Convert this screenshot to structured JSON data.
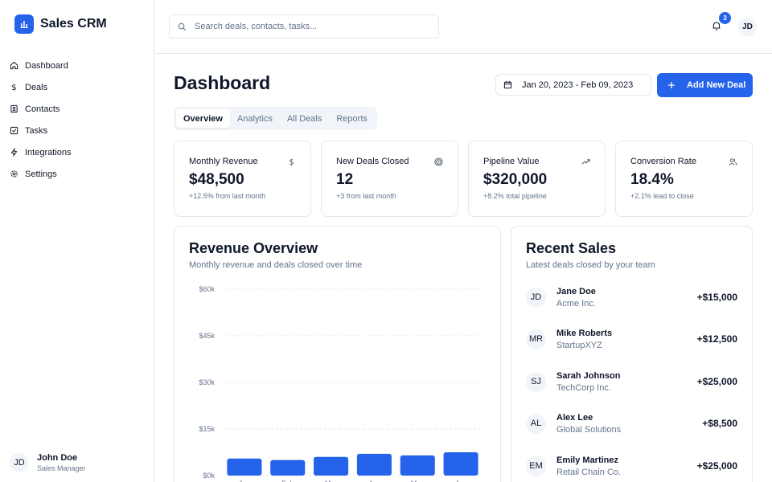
{
  "app": {
    "name": "Sales CRM",
    "accent": "#2563eb"
  },
  "sidebar": {
    "items": [
      {
        "label": "Dashboard",
        "icon": "home-icon",
        "active": true
      },
      {
        "label": "Deals",
        "icon": "dollar-icon"
      },
      {
        "label": "Contacts",
        "icon": "contacts-icon"
      },
      {
        "label": "Tasks",
        "icon": "checkbox-icon"
      },
      {
        "label": "Integrations",
        "icon": "bolt-icon"
      },
      {
        "label": "Settings",
        "icon": "gear-icon"
      }
    ],
    "user": {
      "initials": "JD",
      "name": "John Doe",
      "role": "Sales Manager"
    }
  },
  "header": {
    "search_placeholder": "Search deals, contacts, tasks...",
    "notifications": "3",
    "avatar_initials": "JD"
  },
  "main": {
    "title": "Dashboard",
    "date_range": "Jan 20, 2023 - Feb 09, 2023",
    "add_button": "Add New Deal",
    "tabs": [
      {
        "label": "Overview",
        "active": true
      },
      {
        "label": "Analytics"
      },
      {
        "label": "All Deals"
      },
      {
        "label": "Reports"
      }
    ],
    "stats": [
      {
        "title": "Monthly Revenue",
        "value": "$48,500",
        "sub": "+12.5% from last month",
        "icon": "dollar-icon"
      },
      {
        "title": "New Deals Closed",
        "value": "12",
        "sub": "+3 from last month",
        "icon": "target-icon"
      },
      {
        "title": "Pipeline Value",
        "value": "$320,000",
        "sub": "+8.2% total pipeline",
        "icon": "trending-up-icon"
      },
      {
        "title": "Conversion Rate",
        "value": "18.4%",
        "sub": "+2.1% lead to close",
        "icon": "users-icon"
      }
    ]
  },
  "revenue": {
    "title": "Revenue Overview",
    "subtitle": "Monthly revenue and deals closed over time"
  },
  "chart_data": {
    "type": "bar",
    "categories": [
      "Jan",
      "Feb",
      "Mar",
      "Apr",
      "May",
      "Jun"
    ],
    "values": [
      5500,
      5000,
      6000,
      7000,
      6500,
      7500
    ],
    "yticks": [
      "$0k",
      "$15k",
      "$30k",
      "$45k",
      "$60k"
    ],
    "ylim": [
      0,
      60000
    ],
    "grid": true,
    "bar_color": "#2563eb"
  },
  "recent_sales": {
    "title": "Recent Sales",
    "subtitle": "Latest deals closed by your team",
    "items": [
      {
        "initials": "JD",
        "name": "Jane Doe",
        "company": "Acme Inc.",
        "amount": "+$15,000"
      },
      {
        "initials": "MR",
        "name": "Mike Roberts",
        "company": "StartupXYZ",
        "amount": "+$12,500"
      },
      {
        "initials": "SJ",
        "name": "Sarah Johnson",
        "company": "TechCorp Inc.",
        "amount": "+$25,000"
      },
      {
        "initials": "AL",
        "name": "Alex Lee",
        "company": "Global Solutions",
        "amount": "+$8,500"
      },
      {
        "initials": "EM",
        "name": "Emily Martinez",
        "company": "Retail Chain Co.",
        "amount": "+$25,000"
      }
    ]
  }
}
